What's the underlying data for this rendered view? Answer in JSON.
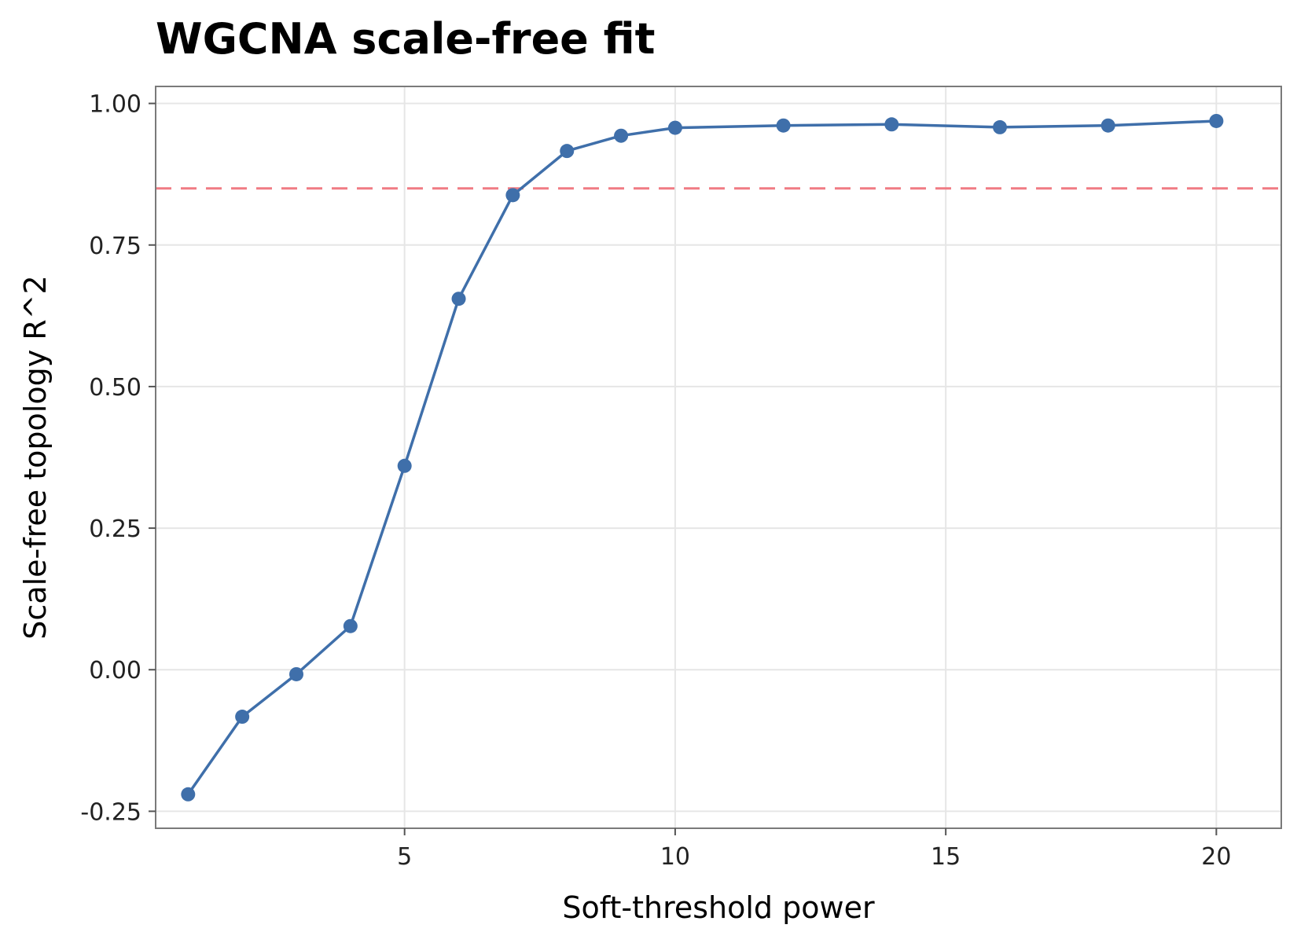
{
  "chart_data": {
    "type": "line",
    "title": "WGCNA scale-free fit",
    "xlabel": "Soft-threshold power",
    "ylabel": "Scale-free topology R^2",
    "xlim": [
      0.4,
      21.2
    ],
    "ylim": [
      -0.28,
      1.03
    ],
    "x_ticks": [
      5,
      10,
      15,
      20
    ],
    "x_tick_labels": [
      "5",
      "10",
      "15",
      "20"
    ],
    "y_ticks": [
      -0.25,
      0,
      0.25,
      0.5,
      0.75,
      1.0
    ],
    "y_tick_labels": [
      "-0.25",
      "0.00",
      "0.25",
      "0.50",
      "0.75",
      "1.00"
    ],
    "grid": true,
    "threshold": {
      "y": 0.85,
      "style": "dashed",
      "color": "#f07b84"
    },
    "series": [
      {
        "color": "#3f6faa",
        "x": [
          1,
          2,
          3,
          4,
          5,
          6,
          7,
          8,
          9,
          10,
          12,
          14,
          16,
          18,
          20
        ],
        "y": [
          -0.22,
          -0.083,
          -0.008,
          0.077,
          0.36,
          0.655,
          0.838,
          0.916,
          0.943,
          0.957,
          0.961,
          0.963,
          0.958,
          0.961,
          0.969
        ]
      }
    ]
  }
}
